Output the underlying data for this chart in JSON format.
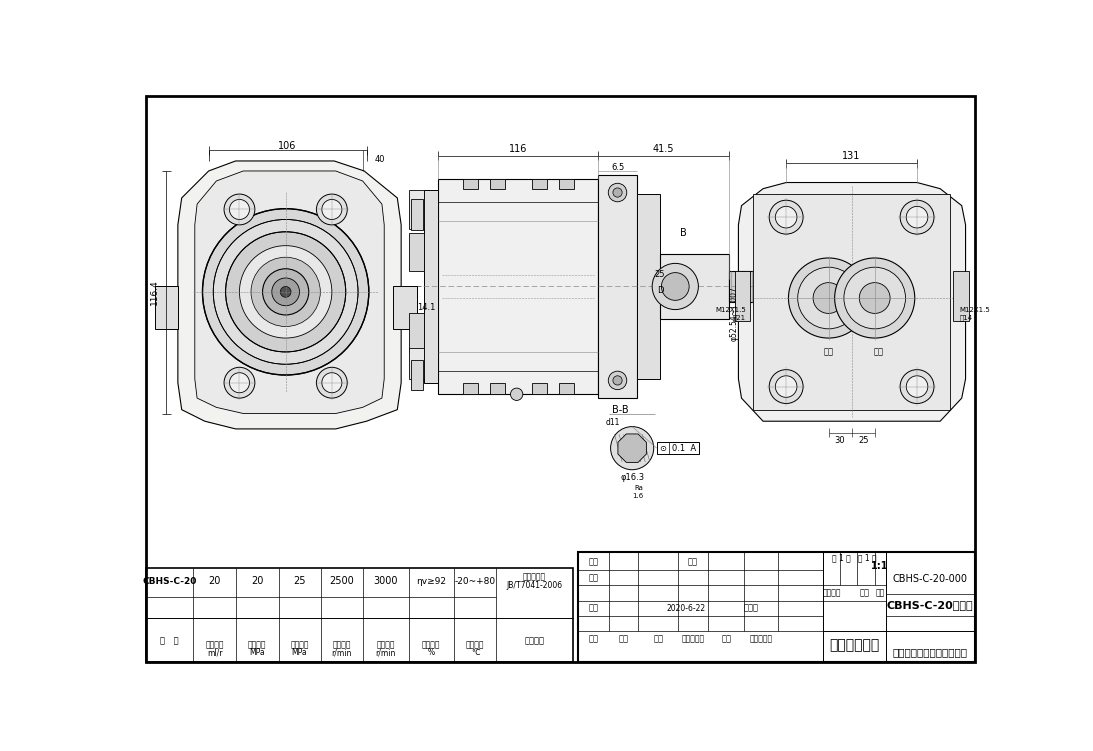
{
  "bg_color": "#ffffff",
  "title_block": {
    "company": "青州华盛液压科技有限公司",
    "drawing_name": "外连接尺寸图",
    "part_name": "CBHS-C-20齿轮泵",
    "part_number": "CBHS-C-20-000",
    "scale": "1:1",
    "date": "2020-6-22",
    "std": "标准化",
    "total_sheets": "共 1 张   第 1 张"
  },
  "spec_table": {
    "model": "CBHS-C-20",
    "displacement": "20",
    "rated_pressure": "20",
    "max_pressure": "25",
    "rated_speed": "2500",
    "max_speed": "3000",
    "efficiency": "ηv≥92",
    "temp_range": "-20~+80",
    "std_code": "JB/T7041-2006",
    "std_name": "液压齿轮泵"
  }
}
